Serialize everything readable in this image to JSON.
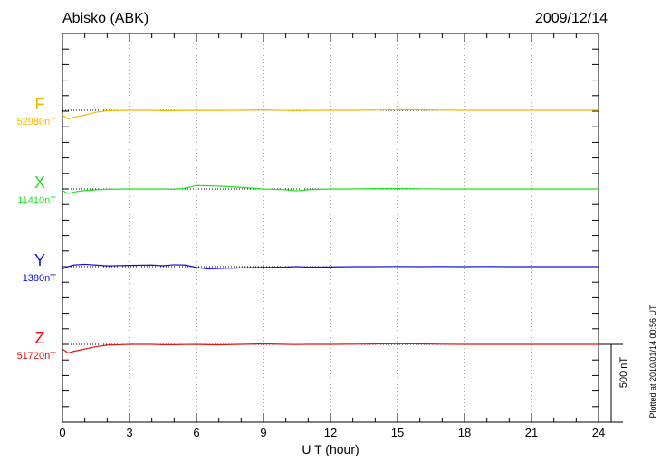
{
  "chart_data": {
    "type": "line",
    "title": "Abisko (ABK)",
    "date": "2009/12/14",
    "xlabel": "U T (hour)",
    "xlim": [
      0,
      24
    ],
    "xticks": [
      "0",
      "3",
      "6",
      "9",
      "12",
      "15",
      "18",
      "21",
      "24"
    ],
    "grid": "vertical dotted at 3-hour ticks",
    "scale_bar": "500 nT",
    "footer": "Plotted at 2010/01/14 00:56 UT",
    "x": [
      0,
      0.25,
      0.5,
      1,
      1.5,
      2,
      3,
      4,
      4.5,
      5,
      5.5,
      6,
      6.5,
      7,
      8,
      9,
      10,
      10.5,
      11,
      12,
      13,
      14,
      15,
      16,
      17,
      18,
      19,
      20,
      21,
      22,
      23,
      24
    ],
    "series": [
      {
        "name": "F",
        "baseline": "52980nT",
        "color": "#f5b800",
        "values": [
          -30,
          -55,
          -45,
          -30,
          -12,
          -3,
          0,
          0,
          -3,
          -2,
          -1,
          0,
          -1,
          -1,
          0,
          2,
          -1,
          -2,
          -1,
          0,
          0,
          1,
          4,
          3,
          1,
          0,
          0,
          0,
          0,
          0,
          0,
          0
        ]
      },
      {
        "name": "X",
        "baseline": "11410nT",
        "color": "#22e022",
        "values": [
          -10,
          -30,
          -20,
          -10,
          -5,
          -2,
          0,
          0,
          0,
          -2,
          5,
          22,
          20,
          18,
          10,
          0,
          -5,
          -12,
          -5,
          0,
          0,
          2,
          3,
          1,
          0,
          0,
          0,
          0,
          0,
          0,
          0,
          0
        ]
      },
      {
        "name": "Y",
        "baseline": "1380nT",
        "color": "#1010e0",
        "values": [
          -15,
          0,
          10,
          15,
          10,
          5,
          8,
          10,
          6,
          12,
          10,
          -5,
          -15,
          -12,
          -8,
          -5,
          -3,
          0,
          -3,
          -2,
          0,
          0,
          1,
          0,
          1,
          0,
          1,
          0,
          0,
          0,
          0,
          0
        ]
      },
      {
        "name": "Z",
        "baseline": "51720nT",
        "color": "#e81010",
        "values": [
          -30,
          -55,
          -45,
          -30,
          -15,
          -5,
          0,
          0,
          -2,
          -2,
          -1,
          0,
          -2,
          -3,
          0,
          3,
          0,
          -1,
          0,
          0,
          1,
          2,
          5,
          3,
          1,
          0,
          0,
          0,
          0,
          0,
          0,
          0
        ]
      }
    ]
  }
}
